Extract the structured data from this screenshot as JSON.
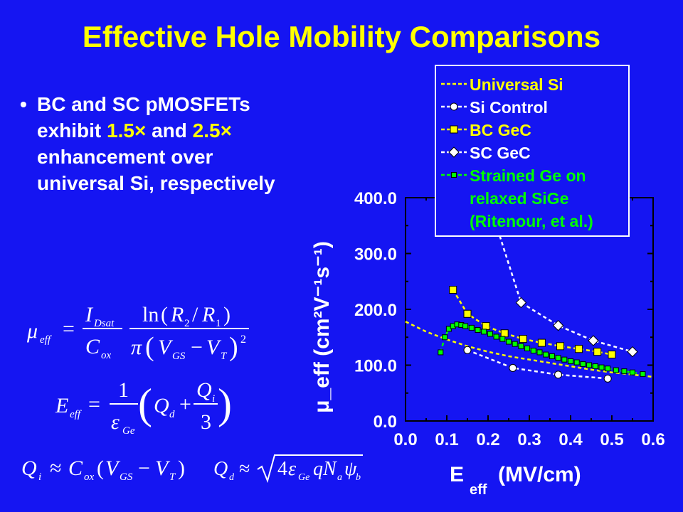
{
  "slide": {
    "title": "Effective Hole Mobility Comparisons",
    "bullet_dot": "•",
    "bullet_part1": "BC and SC pMOSFETs exhibit",
    "bullet_hl1": "1.5×",
    "bullet_and": "and",
    "bullet_hl2": "2.5×",
    "bullet_part2": "enhancement over universal Si, respectively"
  },
  "equations": {
    "mu": "μ_eff = (I_Dsat / C_ox) · ln(R2/R1) / [π (V_GS − V_T)²]",
    "eeff": "E_eff = (1/ε_Ge) (Q_d + Q_i/3)",
    "qi": "Q_i ≈ C_ox(V_GS − V_T)",
    "qd": "Q_d ≈ √(4 ε_Ge q N_a ψ_b)"
  },
  "colors": {
    "background": "#1515f2",
    "title": "#ffff00",
    "text": "#ffffff",
    "universal": "#ffff00",
    "si": "#ffffff",
    "bc": "#ffff00",
    "sc": "#ffffff",
    "strained": "#00ff00"
  },
  "chart_data": {
    "type": "line",
    "xlabel_main": "E",
    "xlabel_sub": "eff",
    "xlabel_unit": "(MV/cm)",
    "ylabel": "μ_eff (cm²V⁻¹s⁻¹)",
    "xlim": [
      0.0,
      0.6
    ],
    "ylim": [
      0.0,
      400.0
    ],
    "xticks": [
      "0.0",
      "0.1",
      "0.2",
      "0.3",
      "0.4",
      "0.5",
      "0.6"
    ],
    "yticks": [
      "0.0",
      "100.0",
      "200.0",
      "300.0",
      "400.0"
    ],
    "legend": "top-right",
    "series": [
      {
        "name": "Universal Si",
        "marker": "none",
        "x": [
          0.0,
          0.05,
          0.1,
          0.15,
          0.2,
          0.25,
          0.3,
          0.35,
          0.4,
          0.45,
          0.5,
          0.55,
          0.6
        ],
        "y": [
          178,
          160,
          146,
          134,
          124,
          116,
          110,
          104,
          98,
          92,
          87,
          83,
          79
        ]
      },
      {
        "name": "Si Control",
        "marker": "circle",
        "x": [
          0.15,
          0.26,
          0.37,
          0.49
        ],
        "y": [
          127,
          95,
          83,
          76
        ]
      },
      {
        "name": "BC GeC",
        "marker": "square",
        "x": [
          0.115,
          0.15,
          0.195,
          0.24,
          0.285,
          0.33,
          0.375,
          0.42,
          0.465,
          0.5
        ],
        "y": [
          235,
          192,
          170,
          157,
          147,
          140,
          134,
          129,
          124,
          119
        ]
      },
      {
        "name": "SC GeC",
        "marker": "diamond",
        "x": [
          0.2,
          0.28,
          0.37,
          0.455,
          0.55
        ],
        "y": [
          397,
          212,
          171,
          144,
          124
        ]
      },
      {
        "name": "Strained Ge on relaxed SiGe (Ritenour, et al.)",
        "legend_lines": [
          "Strained Ge on",
          "relaxed SiGe",
          "(Ritenour, et al.)"
        ],
        "marker": "small-square",
        "x": [
          0.085,
          0.095,
          0.105,
          0.115,
          0.125,
          0.135,
          0.145,
          0.16,
          0.175,
          0.19,
          0.205,
          0.22,
          0.235,
          0.25,
          0.265,
          0.28,
          0.295,
          0.31,
          0.325,
          0.34,
          0.355,
          0.37,
          0.385,
          0.4,
          0.415,
          0.43,
          0.445,
          0.46,
          0.475,
          0.49,
          0.51,
          0.53,
          0.55,
          0.575
        ],
        "y": [
          123,
          150,
          165,
          170,
          173,
          172,
          170,
          167,
          163,
          160,
          156,
          151,
          147,
          142,
          138,
          134,
          130,
          126,
          123,
          119,
          116,
          113,
          110,
          107,
          105,
          102,
          100,
          98,
          96,
          94,
          91,
          89,
          87,
          84
        ]
      }
    ]
  }
}
